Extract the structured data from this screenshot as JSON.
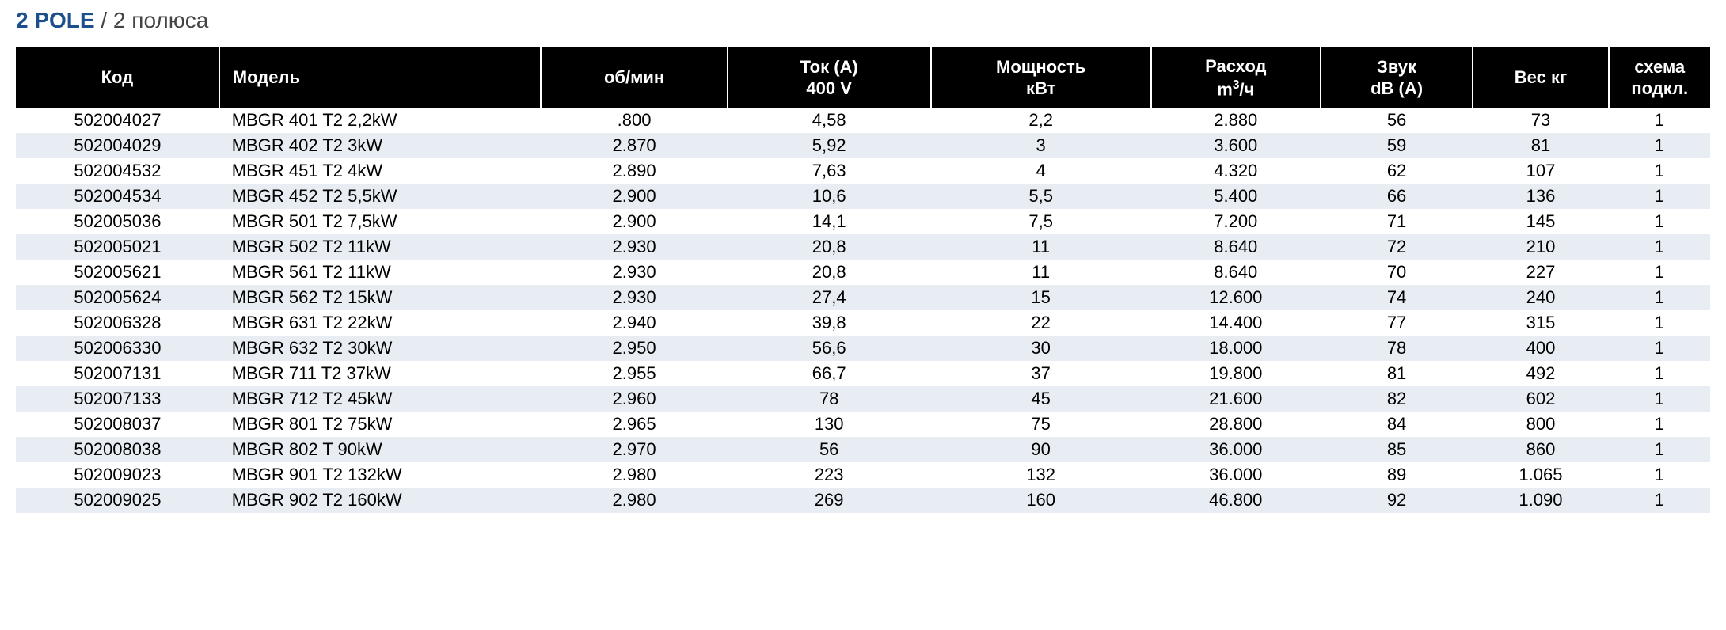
{
  "title": {
    "bold": "2 POLE",
    "rest": " / 2 полюса"
  },
  "table": {
    "type": "table",
    "header_bg": "#000000",
    "header_fg": "#ffffff",
    "row_even_bg": "#ffffff",
    "row_odd_bg": "#e8edf3",
    "font_size_header": 22,
    "font_size_body": 22,
    "columns": [
      {
        "key": "code",
        "label": "Код",
        "align": "center",
        "width_pct": 12
      },
      {
        "key": "model",
        "label": "Модель",
        "align": "left",
        "width_pct": 19
      },
      {
        "key": "rpm",
        "label": "об/мин",
        "align": "center",
        "width_pct": 11
      },
      {
        "key": "amp",
        "label": "Ток (A)\n400 V",
        "align": "center",
        "width_pct": 12
      },
      {
        "key": "power",
        "label": "Мощность\nкВт",
        "align": "center",
        "width_pct": 13
      },
      {
        "key": "flow",
        "label": "Расход\nm³/ч",
        "align": "center",
        "width_pct": 10
      },
      {
        "key": "sound",
        "label": "Звук\ndB (A)",
        "align": "center",
        "width_pct": 9
      },
      {
        "key": "weight",
        "label": "Вес кг",
        "align": "center",
        "width_pct": 8
      },
      {
        "key": "scheme",
        "label": "схема\nподкл.",
        "align": "center",
        "width_pct": 6
      }
    ],
    "rows": [
      {
        "code": "502004027",
        "model": "MBGR 401 T2 2,2kW",
        "rpm": ".800",
        "amp": "4,58",
        "power": "2,2",
        "flow": "2.880",
        "sound": "56",
        "weight": "73",
        "scheme": "1"
      },
      {
        "code": "502004029",
        "model": "MBGR 402 T2 3kW",
        "rpm": "2.870",
        "amp": "5,92",
        "power": "3",
        "flow": "3.600",
        "sound": "59",
        "weight": "81",
        "scheme": "1"
      },
      {
        "code": "502004532",
        "model": "MBGR 451 T2 4kW",
        "rpm": "2.890",
        "amp": "7,63",
        "power": "4",
        "flow": "4.320",
        "sound": "62",
        "weight": "107",
        "scheme": "1"
      },
      {
        "code": "502004534",
        "model": "MBGR 452 T2 5,5kW",
        "rpm": "2.900",
        "amp": "10,6",
        "power": "5,5",
        "flow": "5.400",
        "sound": "66",
        "weight": "136",
        "scheme": "1"
      },
      {
        "code": "502005036",
        "model": "MBGR 501 T2 7,5kW",
        "rpm": "2.900",
        "amp": "14,1",
        "power": "7,5",
        "flow": "7.200",
        "sound": "71",
        "weight": "145",
        "scheme": "1"
      },
      {
        "code": "502005021",
        "model": "MBGR 502 T2 11kW",
        "rpm": "2.930",
        "amp": "20,8",
        "power": "11",
        "flow": "8.640",
        "sound": "72",
        "weight": "210",
        "scheme": "1"
      },
      {
        "code": "502005621",
        "model": "MBGR 561 T2 11kW",
        "rpm": "2.930",
        "amp": "20,8",
        "power": "11",
        "flow": "8.640",
        "sound": "70",
        "weight": "227",
        "scheme": "1"
      },
      {
        "code": "502005624",
        "model": "MBGR 562 T2 15kW",
        "rpm": "2.930",
        "amp": "27,4",
        "power": "15",
        "flow": "12.600",
        "sound": "74",
        "weight": "240",
        "scheme": "1"
      },
      {
        "code": "502006328",
        "model": "MBGR 631 T2 22kW",
        "rpm": "2.940",
        "amp": "39,8",
        "power": "22",
        "flow": "14.400",
        "sound": "77",
        "weight": "315",
        "scheme": "1"
      },
      {
        "code": "502006330",
        "model": "MBGR 632 T2 30kW",
        "rpm": "2.950",
        "amp": "56,6",
        "power": "30",
        "flow": "18.000",
        "sound": "78",
        "weight": "400",
        "scheme": "1"
      },
      {
        "code": "502007131",
        "model": "MBGR 711 T2 37kW",
        "rpm": "2.955",
        "amp": "66,7",
        "power": "37",
        "flow": "19.800",
        "sound": "81",
        "weight": "492",
        "scheme": "1"
      },
      {
        "code": "502007133",
        "model": "MBGR 712 T2 45kW",
        "rpm": "2.960",
        "amp": "78",
        "power": "45",
        "flow": "21.600",
        "sound": "82",
        "weight": "602",
        "scheme": "1"
      },
      {
        "code": "502008037",
        "model": "MBGR 801 T2 75kW",
        "rpm": "2.965",
        "amp": "130",
        "power": "75",
        "flow": "28.800",
        "sound": "84",
        "weight": "800",
        "scheme": "1"
      },
      {
        "code": "502008038",
        "model": "MBGR 802 T   90kW",
        "rpm": "2.970",
        "amp": "56",
        "power": "90",
        "flow": "36.000",
        "sound": "85",
        "weight": "860",
        "scheme": "1"
      },
      {
        "code": "502009023",
        "model": "MBGR 901 T2 132kW",
        "rpm": "2.980",
        "amp": "223",
        "power": "132",
        "flow": "36.000",
        "sound": "89",
        "weight": "1.065",
        "scheme": "1"
      },
      {
        "code": "502009025",
        "model": "MBGR 902 T2 160kW",
        "rpm": "2.980",
        "amp": "269",
        "power": "160",
        "flow": "46.800",
        "sound": "92",
        "weight": "1.090",
        "scheme": "1"
      }
    ]
  }
}
